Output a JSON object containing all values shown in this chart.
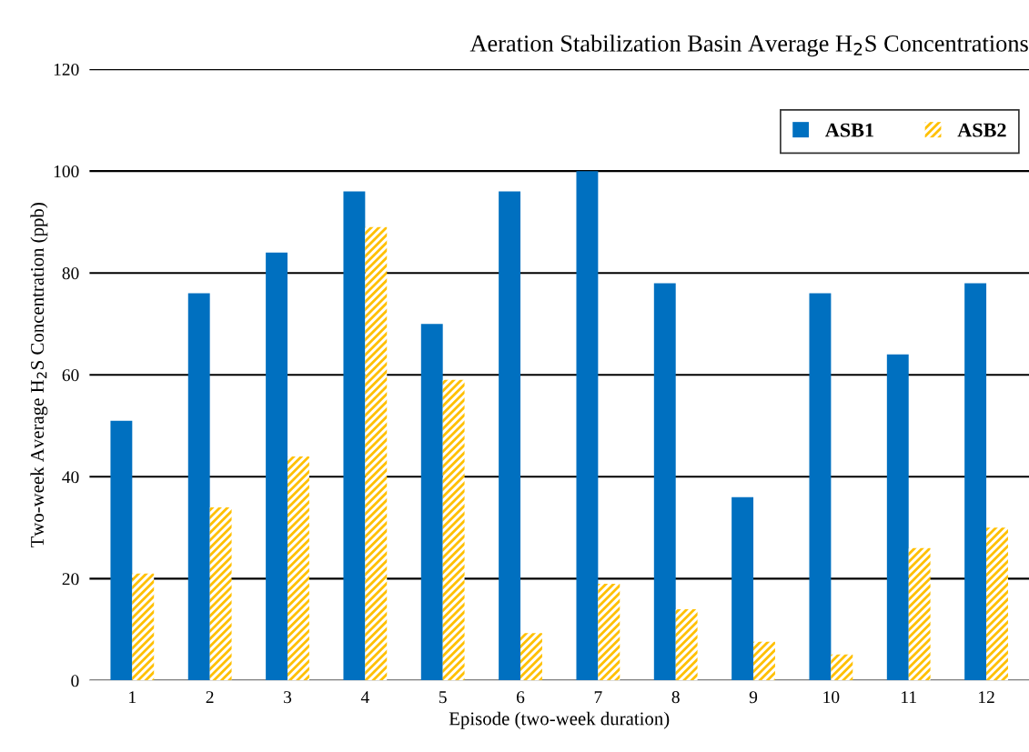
{
  "chart_data": {
    "type": "bar",
    "title": "Aeration Stabilization Basin Average H$_{2}$S Concentrations",
    "xlabel": "Episode (two-week duration)",
    "ylabel": "Two-week Average H$_{2}$S Concentration (ppb)",
    "categories": [
      "1",
      "2",
      "3",
      "4",
      "5",
      "6",
      "7",
      "8",
      "9",
      "10",
      "11",
      "12"
    ],
    "series": [
      {
        "name": "ASB1",
        "color": "#0070c0",
        "values": [
          51,
          76,
          84,
          96,
          70,
          96,
          100,
          78,
          36,
          76,
          64,
          78
        ]
      },
      {
        "name": "ASB2",
        "color": "#ffc000",
        "values": [
          21,
          34,
          44,
          89,
          59,
          9.3,
          19,
          14,
          7.6,
          5.1,
          26,
          30
        ]
      }
    ],
    "ylim": [
      0,
      120
    ],
    "yticks": [
      0,
      20,
      40,
      60,
      80,
      100,
      120
    ],
    "grid": "y",
    "legend": "top right"
  }
}
